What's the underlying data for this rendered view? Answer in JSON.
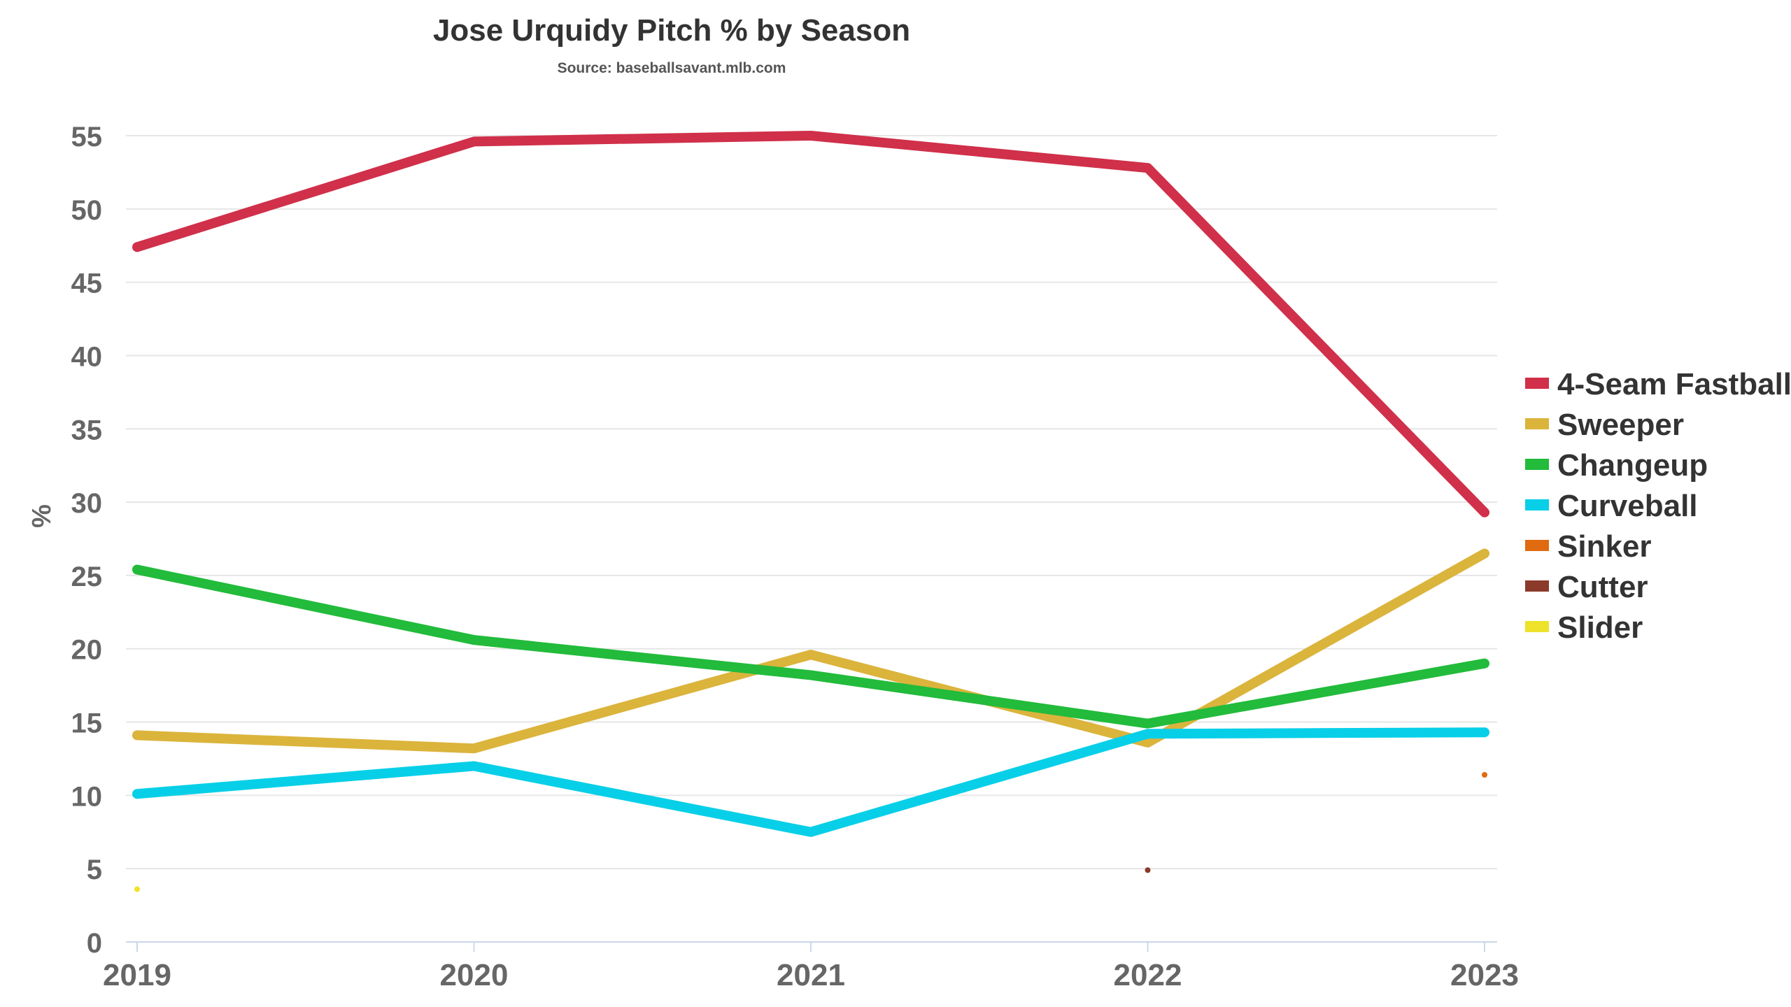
{
  "chart_data": {
    "type": "line",
    "title": "Jose Urquidy Pitch % by Season",
    "subtitle": "Source: baseballsavant.mlb.com",
    "xlabel": "",
    "ylabel": "%",
    "categories": [
      "2019",
      "2020",
      "2021",
      "2022",
      "2023"
    ],
    "ylim": [
      0,
      55
    ],
    "yticks": [
      0,
      5,
      10,
      15,
      20,
      25,
      30,
      35,
      40,
      45,
      50,
      55
    ],
    "grid": true,
    "legend_position": "right",
    "series": [
      {
        "name": "4-Seam Fastball",
        "color": "#d0304a",
        "values": [
          47.4,
          54.6,
          55.0,
          52.8,
          29.3
        ]
      },
      {
        "name": "Sweeper",
        "color": "#dbb43c",
        "values": [
          14.1,
          13.2,
          19.6,
          13.6,
          26.5
        ]
      },
      {
        "name": "Changeup",
        "color": "#22bb3b",
        "values": [
          25.4,
          20.6,
          18.2,
          14.9,
          19.0
        ]
      },
      {
        "name": "Curveball",
        "color": "#08cfe8",
        "values": [
          10.1,
          12.0,
          7.5,
          14.2,
          14.3
        ]
      },
      {
        "name": "Sinker",
        "color": "#e06a10",
        "values": [
          null,
          null,
          null,
          null,
          11.4
        ]
      },
      {
        "name": "Cutter",
        "color": "#8b3a2a",
        "values": [
          null,
          null,
          null,
          4.9,
          null
        ]
      },
      {
        "name": "Slider",
        "color": "#eee22a",
        "values": [
          3.6,
          null,
          null,
          null,
          null
        ]
      }
    ]
  }
}
